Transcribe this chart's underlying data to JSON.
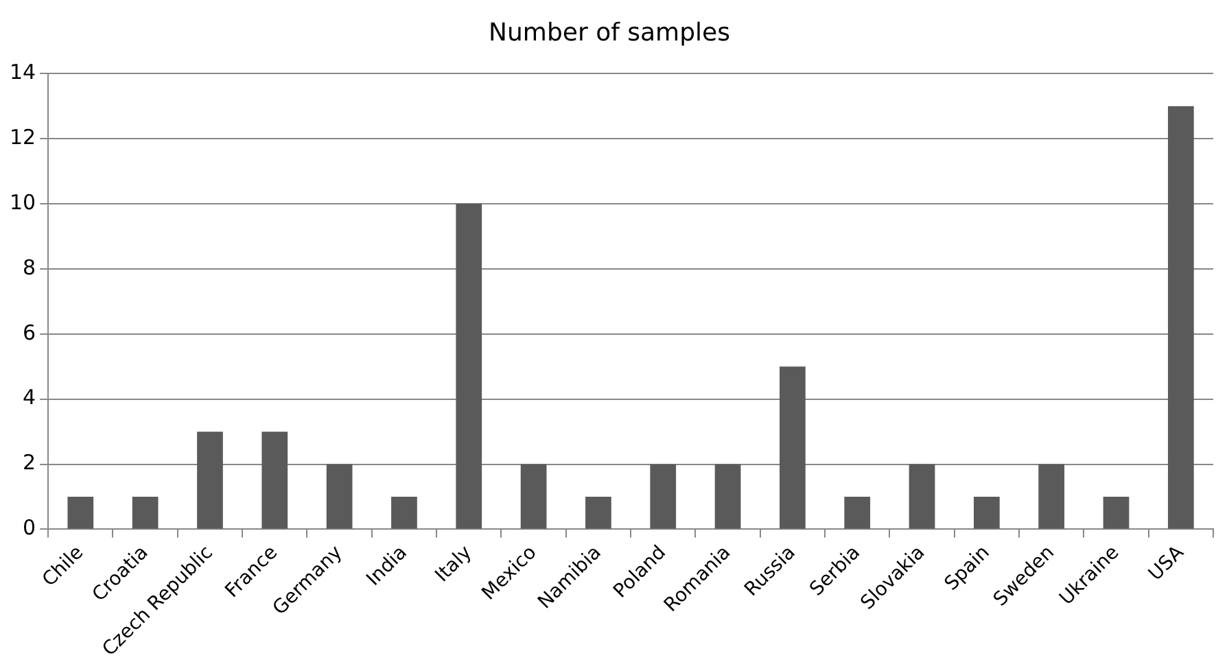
{
  "chart_data": {
    "type": "bar",
    "title": "Number of samples",
    "categories": [
      "Chile",
      "Croatia",
      "Czech Republic",
      "France",
      "Germany",
      "India",
      "Italy",
      "Mexico",
      "Namibia",
      "Poland",
      "Romania",
      "Russia",
      "Serbia",
      "Slovakia",
      "Spain",
      "Sweden",
      "Ukraine",
      "USA"
    ],
    "values": [
      1,
      1,
      3,
      3,
      2,
      1,
      10,
      2,
      1,
      2,
      2,
      5,
      1,
      2,
      1,
      2,
      1,
      13
    ],
    "color": "#5a5a5a",
    "ylim": [
      0,
      14
    ],
    "yticks": [
      0,
      2,
      4,
      6,
      8,
      10,
      12,
      14
    ],
    "grid": "y",
    "legend": false
  }
}
